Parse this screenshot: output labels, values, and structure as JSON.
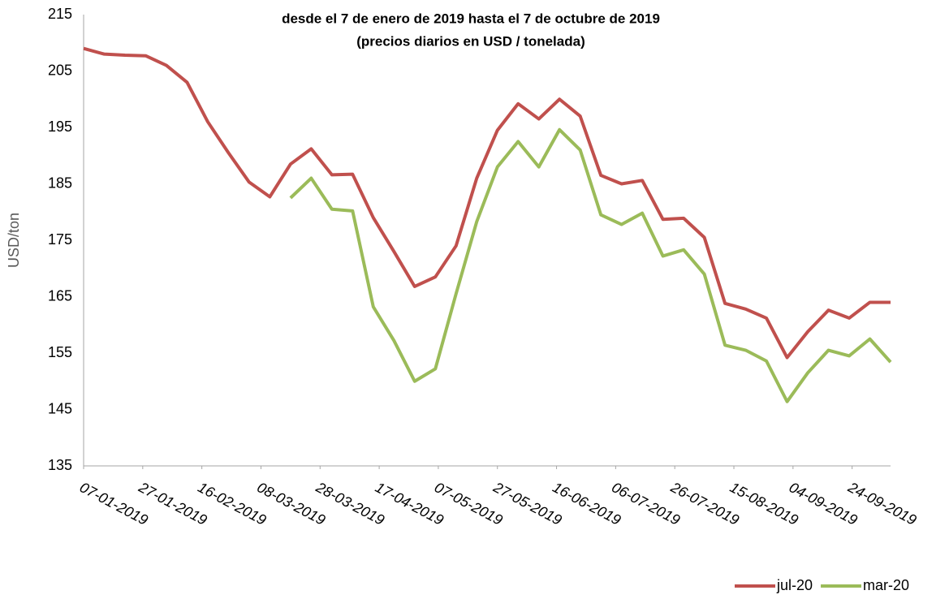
{
  "chart_data": {
    "type": "line",
    "title": "desde el 7 de enero de 2019 hasta el 7 de octubre de 2019",
    "subtitle": "(precios diarios en USD / tonelada)",
    "y_label": "USD/ton",
    "x": [
      "07-01-2019",
      "14-01-2019",
      "21-01-2019",
      "28-01-2019",
      "04-02-2019",
      "11-02-2019",
      "18-02-2019",
      "25-02-2019",
      "04-03-2019",
      "11-03-2019",
      "18-03-2019",
      "25-03-2019",
      "01-04-2019",
      "08-04-2019",
      "15-04-2019",
      "22-04-2019",
      "29-04-2019",
      "06-05-2019",
      "13-05-2019",
      "20-05-2019",
      "27-05-2019",
      "03-06-2019",
      "10-06-2019",
      "17-06-2019",
      "24-06-2019",
      "01-07-2019",
      "08-07-2019",
      "15-07-2019",
      "22-07-2019",
      "29-07-2019",
      "05-08-2019",
      "12-08-2019",
      "19-08-2019",
      "26-08-2019",
      "02-09-2019",
      "09-09-2019",
      "16-09-2019",
      "23-09-2019",
      "30-09-2019",
      "07-10-2019"
    ],
    "series": [
      {
        "name": "jul-20",
        "color": "#c0504d",
        "values": [
          209,
          208,
          207.8,
          207.7,
          206,
          203,
          196,
          190.5,
          185.3,
          182.7,
          188.5,
          191.2,
          186.6,
          186.7,
          179,
          173,
          166.8,
          168.5,
          174,
          186,
          194.5,
          199.2,
          196.5,
          200,
          197,
          186.5,
          185,
          185.6,
          178.7,
          178.9,
          175.5,
          163.8,
          162.8,
          161.2,
          154.2,
          158.8,
          162.6,
          161.2,
          164,
          164
        ]
      },
      {
        "name": "mar-20",
        "color": "#9bbb59",
        "values": [
          null,
          null,
          null,
          null,
          null,
          null,
          null,
          null,
          null,
          null,
          182.5,
          186,
          180.5,
          180.2,
          163.2,
          157.2,
          150,
          152.2,
          165.5,
          178.3,
          188,
          192.5,
          188,
          194.6,
          191,
          179.5,
          177.8,
          179.8,
          172.2,
          173.3,
          169,
          156.4,
          155.5,
          153.6,
          146.4,
          151.5,
          155.5,
          154.5,
          157.5,
          153.4
        ]
      }
    ],
    "xlim": [
      "07-01-2019",
      "07-10-2019"
    ],
    "xticks": [
      "07-01-2019",
      "27-01-2019",
      "16-02-2019",
      "08-03-2019",
      "28-03-2019",
      "17-04-2019",
      "07-05-2019",
      "27-05-2019",
      "16-06-2019",
      "06-07-2019",
      "26-07-2019",
      "15-08-2019",
      "04-09-2019",
      "24-09-2019"
    ],
    "ylim": [
      135,
      215
    ],
    "yticks": [
      135,
      145,
      155,
      165,
      175,
      185,
      195,
      205,
      215
    ],
    "grid": false,
    "legend": "bottom-right"
  }
}
